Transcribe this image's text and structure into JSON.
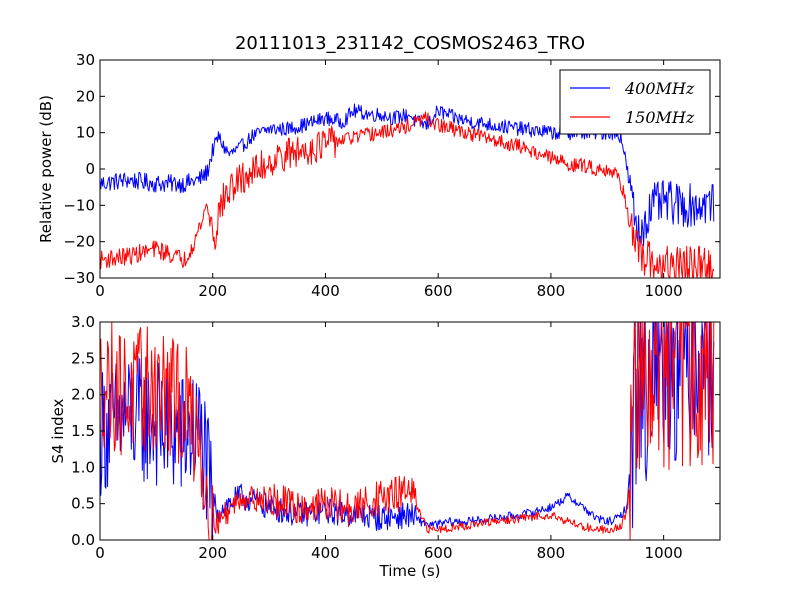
{
  "chart_data": [
    {
      "type": "line",
      "title": "20111013_231142_COSMOS2463_TRO",
      "xlabel": "",
      "ylabel": "Relative power (dB)",
      "xlim": [
        0,
        1100
      ],
      "ylim": [
        -30,
        30
      ],
      "xticks": [
        "0",
        "200",
        "400",
        "600",
        "800",
        "1000"
      ],
      "yticks": [
        "30",
        "20",
        "10",
        "0",
        "−10",
        "−20",
        "−30"
      ],
      "legend_position": "top-right",
      "series": [
        {
          "name": "400MHz",
          "color": "#0000ff",
          "x": [
            0,
            50,
            100,
            150,
            175,
            190,
            200,
            210,
            220,
            230,
            250,
            270,
            300,
            330,
            360,
            400,
            430,
            450,
            480,
            500,
            520,
            550,
            560,
            580,
            600,
            630,
            660,
            700,
            750,
            800,
            840,
            880,
            910,
            925,
            935,
            945,
            955,
            965,
            980,
            1000,
            1030,
            1060,
            1090
          ],
          "y": [
            -4,
            -3,
            -4,
            -4,
            -3,
            -1,
            5,
            9,
            6,
            4,
            6,
            9,
            11,
            11,
            12,
            14,
            13,
            16,
            15,
            15,
            14,
            15,
            13,
            12,
            16,
            14,
            13,
            12,
            11,
            10,
            10,
            10,
            10,
            9,
            0,
            -10,
            -18,
            -15,
            -10,
            -9,
            -10,
            -10,
            -9
          ]
        },
        {
          "name": "150MHz",
          "color": "#ff0000",
          "x": [
            0,
            50,
            100,
            150,
            170,
            190,
            205,
            210,
            220,
            240,
            260,
            280,
            300,
            330,
            360,
            400,
            430,
            460,
            500,
            530,
            550,
            575,
            600,
            650,
            700,
            750,
            800,
            840,
            860,
            880,
            900,
            920,
            930,
            940,
            950,
            960,
            1000,
            1050,
            1090
          ],
          "y": [
            -25,
            -24,
            -22,
            -25,
            -19,
            -10,
            -20,
            -12,
            -8,
            -4,
            -2,
            0,
            2,
            4,
            5,
            7,
            8,
            9,
            10,
            11,
            12,
            14,
            12,
            10,
            8,
            6,
            3,
            1,
            1,
            0,
            0,
            -2,
            -7,
            -15,
            -22,
            -25,
            -27,
            -27,
            -28
          ]
        }
      ]
    },
    {
      "type": "line",
      "title": "",
      "xlabel": "Time (s)",
      "ylabel": "S4 index",
      "xlim": [
        0,
        1100
      ],
      "ylim": [
        0,
        3
      ],
      "xticks": [
        "0",
        "200",
        "400",
        "600",
        "800",
        "1000"
      ],
      "yticks": [
        "3.0",
        "2.5",
        "2.0",
        "1.5",
        "1.0",
        "0.5",
        "0.0"
      ],
      "series": [
        {
          "name": "400MHz",
          "color": "#0000ff",
          "x": [
            0,
            50,
            100,
            150,
            175,
            185,
            195,
            210,
            250,
            300,
            350,
            400,
            450,
            500,
            550,
            570,
            590,
            620,
            650,
            700,
            750,
            800,
            830,
            850,
            880,
            900,
            920,
            935,
            945,
            955,
            965,
            980,
            1000,
            1030,
            1060,
            1090
          ],
          "y": [
            1.5,
            1.7,
            1.6,
            1.4,
            1.5,
            1.2,
            0.6,
            0.4,
            0.6,
            0.45,
            0.35,
            0.4,
            0.35,
            0.3,
            0.35,
            0.25,
            0.2,
            0.25,
            0.25,
            0.3,
            0.35,
            0.45,
            0.6,
            0.5,
            0.3,
            0.25,
            0.3,
            0.45,
            1.5,
            2.8,
            1.8,
            2.6,
            2.8,
            2.6,
            2.9,
            2.7
          ]
        },
        {
          "name": "150MHz",
          "color": "#ff0000",
          "x": [
            0,
            50,
            100,
            150,
            175,
            185,
            195,
            210,
            250,
            300,
            350,
            400,
            450,
            480,
            520,
            550,
            565,
            580,
            600,
            650,
            700,
            750,
            800,
            850,
            880,
            910,
            925,
            935,
            945,
            955,
            970,
            990,
            1010,
            1040,
            1070,
            1090
          ],
          "y": [
            2.2,
            2.0,
            2.1,
            1.8,
            1.6,
            0.9,
            0.3,
            0.25,
            0.6,
            0.55,
            0.45,
            0.5,
            0.4,
            0.55,
            0.6,
            0.7,
            0.4,
            0.15,
            0.15,
            0.2,
            0.25,
            0.3,
            0.35,
            0.2,
            0.15,
            0.15,
            0.2,
            0.4,
            1.2,
            2.5,
            2.3,
            2.6,
            2.4,
            2.6,
            2.5,
            2.6
          ]
        }
      ]
    }
  ]
}
